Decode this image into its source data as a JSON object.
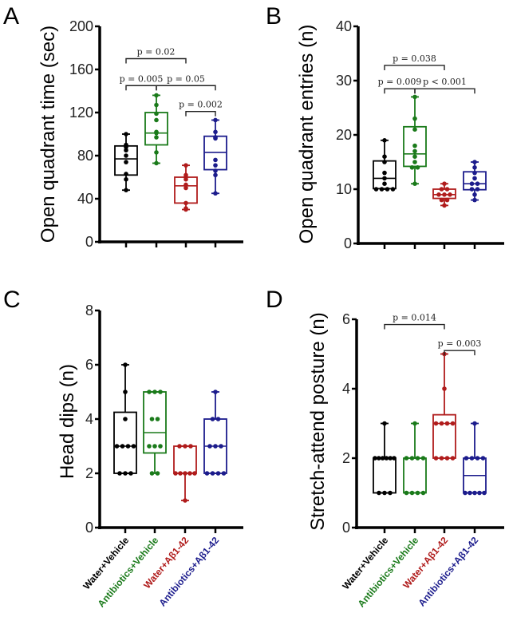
{
  "colors": {
    "g0": "#000000",
    "g1": "#1a7a1a",
    "g2": "#b01c1c",
    "g3": "#1c1c8c"
  },
  "categories": [
    "Water+Vehicle",
    "Antibiotics+Vehicle",
    "Water+Aβ1-42",
    "Antibiotics+Aβ1-42"
  ],
  "chart_data": [
    {
      "panel": "A",
      "type": "box",
      "ylabel": "Open quadrant time (sec)",
      "ylim": [
        0,
        200
      ],
      "yticks": [
        "0",
        "40",
        "80",
        "120",
        "160",
        "200"
      ],
      "ytick_values": [
        0,
        40,
        80,
        120,
        160,
        200
      ],
      "groups": [
        {
          "min": 48,
          "q1": 62,
          "median": 77,
          "q3": 89,
          "max": 100,
          "points": [
            100,
            90,
            88,
            85,
            80,
            74,
            63,
            58,
            48
          ]
        },
        {
          "min": 73,
          "q1": 90,
          "median": 101,
          "q3": 120,
          "max": 136,
          "points": [
            136,
            127,
            119,
            113,
            102,
            101,
            97,
            83,
            73
          ]
        },
        {
          "min": 30,
          "q1": 36,
          "median": 52,
          "q3": 60,
          "max": 71,
          "points": [
            71,
            62,
            60,
            58,
            53,
            50,
            36,
            31,
            30
          ]
        },
        {
          "min": 45,
          "q1": 67,
          "median": 83,
          "q3": 98,
          "max": 113,
          "points": [
            113,
            102,
            97,
            96,
            76,
            71,
            66,
            62,
            45
          ]
        }
      ],
      "comparisons": [
        {
          "from": 0,
          "to": 2,
          "level": 170,
          "label": "p = 0.02"
        },
        {
          "from": 0,
          "to": 1,
          "level": 145,
          "label": "p = 0.005"
        },
        {
          "from": 1,
          "to": 3,
          "level": 145,
          "label": "p = 0.05"
        },
        {
          "from": 2,
          "to": 3,
          "level": 121,
          "label": "p = 0.002"
        }
      ]
    },
    {
      "panel": "B",
      "type": "box",
      "ylabel": "Open quadrant entries (n)",
      "ylim": [
        0,
        40
      ],
      "yticks": [
        "0",
        "10",
        "20",
        "30",
        "40"
      ],
      "ytick_values": [
        0,
        10,
        20,
        30,
        40
      ],
      "groups": [
        {
          "min": 10,
          "q1": 10.1,
          "median": 12,
          "q3": 15.2,
          "max": 19,
          "points": [
            19,
            16,
            15,
            13,
            12,
            11,
            10,
            10,
            10,
            10
          ]
        },
        {
          "min": 11,
          "q1": 14.2,
          "median": 16.5,
          "q3": 21.5,
          "max": 27,
          "points": [
            27,
            23,
            21,
            18,
            17,
            16,
            15,
            14,
            14,
            11
          ]
        },
        {
          "min": 7,
          "q1": 8.3,
          "median": 9,
          "q3": 10,
          "max": 11,
          "points": [
            11,
            10,
            10,
            9,
            9,
            9,
            8,
            8,
            7
          ]
        },
        {
          "min": 8,
          "q1": 9.9,
          "median": 11,
          "q3": 13.2,
          "max": 15,
          "points": [
            15,
            14,
            13,
            12,
            11,
            11,
            10,
            10,
            9,
            8
          ]
        }
      ],
      "comparisons": [
        {
          "from": 0,
          "to": 2,
          "level": 32.8,
          "label": "p = 0.038"
        },
        {
          "from": 0,
          "to": 1,
          "level": 28.5,
          "label": "p = 0.009"
        },
        {
          "from": 1,
          "to": 3,
          "level": 28.5,
          "label": "p < 0.001"
        }
      ]
    },
    {
      "panel": "C",
      "type": "box",
      "ylabel": "Head dips (n)",
      "ylim": [
        0,
        8
      ],
      "yticks": [
        "0",
        "2",
        "4",
        "6",
        "8"
      ],
      "ytick_values": [
        0,
        2,
        4,
        6,
        8
      ],
      "groups": [
        {
          "min": 2,
          "q1": 2,
          "median": 3,
          "q3": 4.25,
          "max": 6,
          "points": [
            6,
            5,
            4,
            3,
            3,
            3,
            3,
            2,
            2,
            2
          ]
        },
        {
          "min": 2,
          "q1": 2.75,
          "median": 3.5,
          "q3": 5,
          "max": 5,
          "points": [
            5,
            5,
            5,
            4,
            4,
            3,
            3,
            3,
            2,
            2
          ]
        },
        {
          "min": 1,
          "q1": 2,
          "median": 2,
          "q3": 3,
          "max": 3,
          "points": [
            3,
            3,
            3,
            2,
            2,
            2,
            2,
            2,
            1
          ]
        },
        {
          "min": 2,
          "q1": 2,
          "median": 3,
          "q3": 4,
          "max": 5,
          "points": [
            5,
            4,
            4,
            3,
            3,
            3,
            2,
            2,
            2,
            2
          ]
        }
      ],
      "comparisons": []
    },
    {
      "panel": "D",
      "type": "box",
      "ylabel": "Stretch-attend posture (n)",
      "ylim": [
        0,
        6
      ],
      "yticks": [
        "0",
        "2",
        "4",
        "6"
      ],
      "ytick_values": [
        0,
        2,
        4,
        6
      ],
      "groups": [
        {
          "min": 1,
          "q1": 1,
          "median": 2,
          "q3": 2,
          "max": 3,
          "points": [
            3,
            2,
            2,
            2,
            2,
            2,
            2,
            1,
            1,
            1
          ]
        },
        {
          "min": 1,
          "q1": 1,
          "median": 2,
          "q3": 2,
          "max": 3,
          "points": [
            3,
            2,
            2,
            2,
            2,
            1,
            1,
            1,
            1
          ]
        },
        {
          "min": 2,
          "q1": 2,
          "median": 3,
          "q3": 3.25,
          "max": 5,
          "points": [
            5,
            4,
            3,
            3,
            3,
            3,
            2,
            2,
            2,
            2
          ]
        },
        {
          "min": 1,
          "q1": 1,
          "median": 1.5,
          "q3": 2,
          "max": 3,
          "points": [
            3,
            2,
            2,
            2,
            2,
            1,
            1,
            1,
            1,
            1
          ]
        }
      ],
      "comparisons": [
        {
          "from": 0,
          "to": 2,
          "level": 5.85,
          "label": "p = 0.014"
        },
        {
          "from": 2,
          "to": 3,
          "level": 5.1,
          "label": "p = 0.003"
        }
      ]
    }
  ]
}
